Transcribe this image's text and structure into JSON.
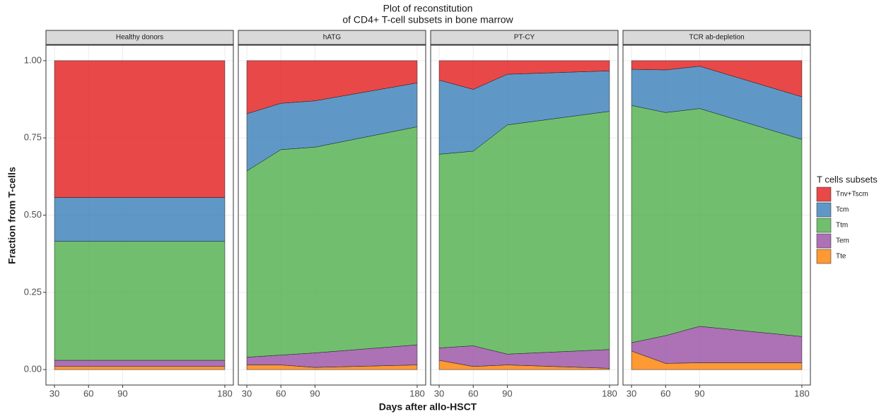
{
  "chart_data": {
    "type": "area",
    "title": [
      "Plot of reconstitution",
      "of CD4+ T-cell subsets in bone marrow"
    ],
    "xlabel": "Days after allo-HSCT",
    "ylabel": "Fraction from T-cells",
    "legend_title": "T cells subsets",
    "grid": true,
    "xlim": [
      22.5,
      187.5
    ],
    "xticks": [
      30,
      60,
      90,
      180
    ],
    "ylim": [
      -0.05,
      1.05
    ],
    "yticks": [
      {
        "value": 0,
        "label": "0.00"
      },
      0.25,
      {
        "value": 0.5,
        "label": "0.50"
      },
      0.75,
      {
        "value": 1,
        "label": "1.00"
      }
    ],
    "facets": [
      {
        "title": "Healthy donors",
        "x": [
          30,
          60,
          90,
          180
        ]
      },
      {
        "title": "hATG",
        "x": [
          30,
          60,
          90,
          180
        ]
      },
      {
        "title": "PT-CY",
        "x": [
          30,
          60,
          90,
          180
        ]
      },
      {
        "title": "TCR ab-depletion",
        "x": [
          30,
          60,
          90,
          180
        ]
      }
    ],
    "series": [
      {
        "name": "Tnv+Tscm",
        "color": "#e41a1c",
        "values": [
          [
            0.443,
            0.443,
            0.443,
            0.443
          ],
          [
            0.172,
            0.138,
            0.13,
            0.072
          ],
          [
            0.063,
            0.093,
            0.044,
            0.033
          ],
          [
            0.028,
            0.03,
            0.018,
            0.117
          ]
        ]
      },
      {
        "name": "Tcm",
        "color": "#377eb8",
        "values": [
          [
            0.142,
            0.142,
            0.142,
            0.142
          ],
          [
            0.185,
            0.15,
            0.15,
            0.142
          ],
          [
            0.24,
            0.2,
            0.164,
            0.131
          ],
          [
            0.117,
            0.138,
            0.137,
            0.138
          ]
        ]
      },
      {
        "name": "Ttm",
        "color": "#4daf4a",
        "values": [
          [
            0.385,
            0.385,
            0.385,
            0.385
          ],
          [
            0.603,
            0.665,
            0.666,
            0.706
          ],
          [
            0.627,
            0.63,
            0.742,
            0.771
          ],
          [
            0.768,
            0.722,
            0.705,
            0.638
          ]
        ]
      },
      {
        "name": "Tem",
        "color": "#984ea3",
        "values": [
          [
            0.02,
            0.02,
            0.02,
            0.02
          ],
          [
            0.025,
            0.032,
            0.047,
            0.065
          ],
          [
            0.04,
            0.067,
            0.035,
            0.061
          ],
          [
            0.027,
            0.09,
            0.118,
            0.085
          ]
        ]
      },
      {
        "name": "Tte",
        "color": "#ff7f00",
        "values": [
          [
            0.01,
            0.01,
            0.01,
            0.01
          ],
          [
            0.015,
            0.015,
            0.007,
            0.015
          ],
          [
            0.03,
            0.01,
            0.015,
            0.004
          ],
          [
            0.06,
            0.02,
            0.022,
            0.022
          ]
        ]
      }
    ]
  }
}
